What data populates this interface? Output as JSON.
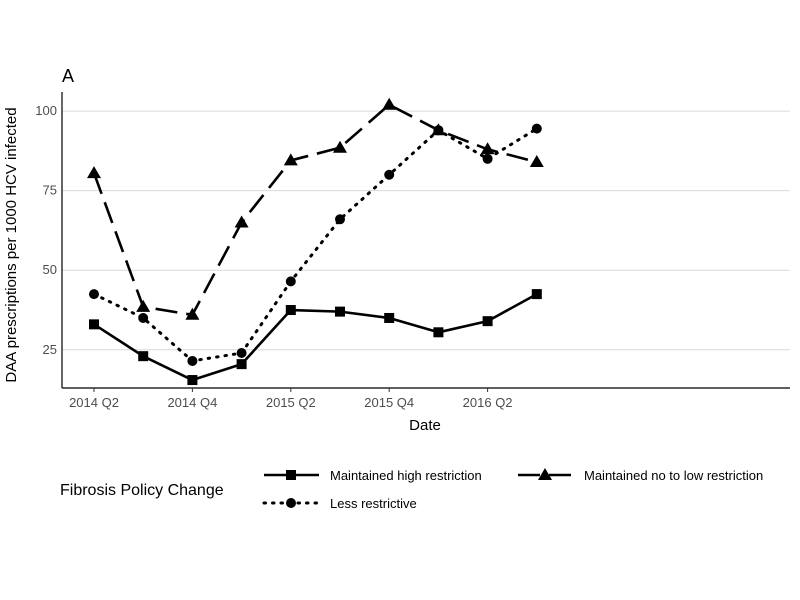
{
  "chart_data": {
    "type": "line",
    "panel_label": "A",
    "title": "",
    "xlabel": "Date",
    "ylabel": "DAA prescriptions per 1000 HCV infected",
    "x": [
      "2014 Q2",
      "2014 Q3",
      "2014 Q4",
      "2015 Q1",
      "2015 Q2",
      "2015 Q3",
      "2015 Q4",
      "2016 Q1",
      "2016 Q2",
      "2016 Q3"
    ],
    "x_tick_labels": [
      "2014 Q2",
      "2014 Q4",
      "2015 Q2",
      "2015 Q4",
      "2016 Q2"
    ],
    "y_ticks": [
      25,
      50,
      75,
      100
    ],
    "ylim": [
      13,
      106
    ],
    "grid": "horizontal",
    "legend_title": "Fibrosis Policy Change",
    "legend_position": "bottom",
    "series": [
      {
        "name": "Maintained high restriction",
        "marker": "square",
        "dash": "solid",
        "values": [
          33,
          23,
          15.5,
          20.5,
          37.5,
          37,
          35,
          30.5,
          34,
          42.5
        ]
      },
      {
        "name": "Maintained no to low restriction",
        "marker": "triangle",
        "dash": "longdash",
        "values": [
          80.5,
          38.5,
          36,
          65,
          84.5,
          88.5,
          102,
          94,
          88,
          84
        ]
      },
      {
        "name": "Less restrictive",
        "marker": "circle",
        "dash": "dotted",
        "values": [
          42.5,
          35,
          21.5,
          24,
          46.5,
          66,
          80,
          94,
          85,
          94.5
        ]
      }
    ],
    "colors": {
      "lines": "#000000",
      "grid": "#d9d9d9",
      "ticks": "#4d4d4d"
    }
  }
}
